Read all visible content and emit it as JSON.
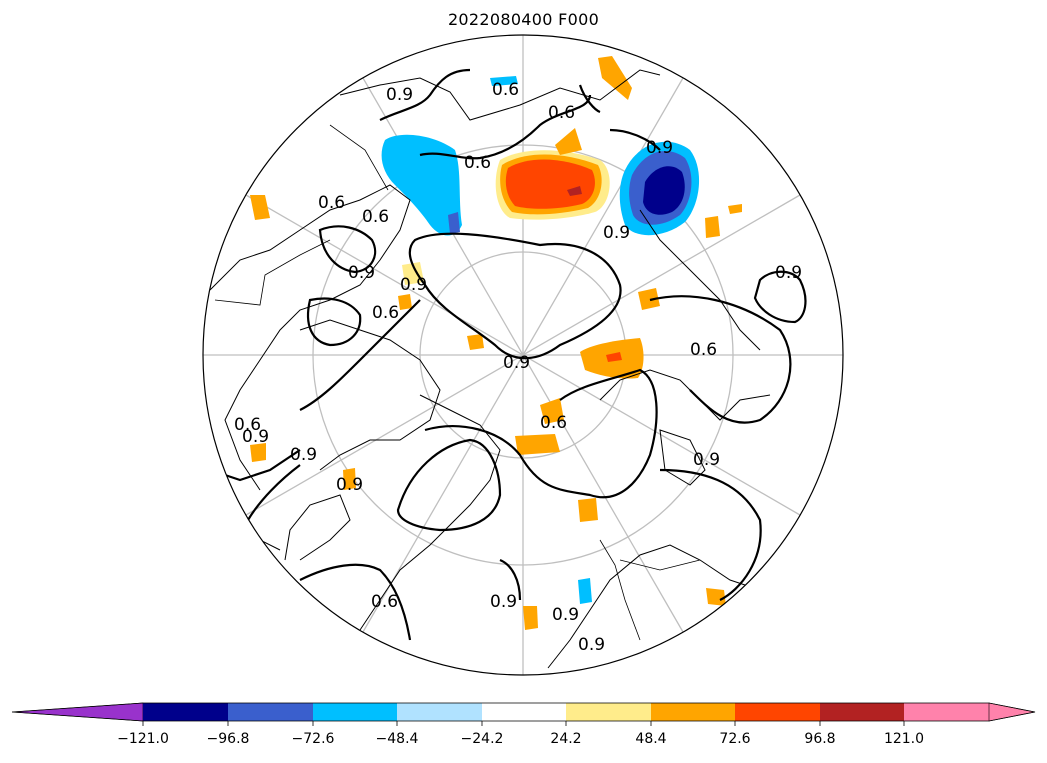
{
  "title": "2022080400 F000",
  "contour_labels": [
    "0.9",
    "0.6",
    "0.6",
    "0.6",
    "0.6",
    "0.9",
    "0.9",
    "0.9",
    "0.9",
    "0.9",
    "0.6",
    "0.9",
    "0.6",
    "0.9",
    "0.6",
    "0.9",
    "0.9",
    "0.6",
    "0.9",
    "0.9",
    "0.6",
    "0.9",
    "0.6",
    "0.9"
  ],
  "colorbar": {
    "ticks": [
      "−121.0",
      "−96.8",
      "−72.6",
      "−48.4",
      "−24.2",
      "24.2",
      "48.4",
      "72.6",
      "96.8",
      "121.0"
    ],
    "colors": [
      "#9932cc",
      "#00008b",
      "#3a5fcd",
      "#00bfff",
      "#b0e2ff",
      "#ffffff",
      "#ffec8b",
      "#ffa500",
      "#ff4500",
      "#b22222",
      "#ff82ab"
    ]
  },
  "colors": {
    "coast": "#000000",
    "grid": "#bfbfbf",
    "contour": "#000000"
  }
}
